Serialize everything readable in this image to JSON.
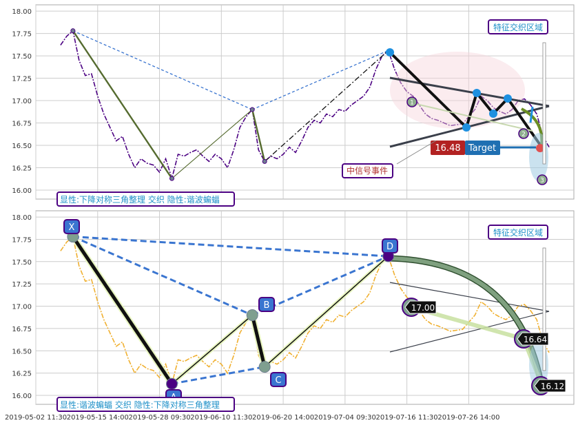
{
  "chart_data": [
    {
      "type": "line",
      "panel": "top",
      "ylim": [
        15.9,
        18.07
      ],
      "yticks": [
        "18.00",
        "17.75",
        "17.50",
        "17.25",
        "17.00",
        "16.75",
        "16.50",
        "16.25",
        "16.00"
      ],
      "series": [
        {
          "color": "#4b0082",
          "style": "dash-dot",
          "x": [
            0,
            1,
            2,
            3,
            4,
            5,
            6,
            7,
            8,
            9,
            10,
            11,
            12,
            13,
            14,
            15,
            16,
            17,
            18,
            19,
            20,
            21,
            22,
            23,
            24,
            25,
            26,
            27,
            28,
            29,
            30,
            31,
            32,
            33,
            34,
            35,
            36,
            37,
            38,
            39,
            40,
            41,
            42,
            43,
            44,
            45,
            46,
            47,
            48,
            49,
            50,
            51,
            52,
            53,
            54,
            55,
            56,
            57,
            58,
            59,
            60,
            61,
            62,
            63,
            64,
            65,
            66,
            67,
            68,
            69,
            70,
            71,
            72,
            73,
            74,
            75,
            76,
            77,
            78,
            79
          ],
          "y": [
            17.62,
            17.72,
            17.78,
            17.45,
            17.28,
            17.3,
            17.05,
            16.85,
            16.7,
            16.55,
            16.6,
            16.4,
            16.25,
            16.35,
            16.3,
            16.28,
            16.2,
            16.35,
            16.13,
            16.4,
            16.38,
            16.42,
            16.45,
            16.38,
            16.32,
            16.4,
            16.35,
            16.25,
            16.45,
            16.7,
            16.82,
            16.9,
            16.45,
            16.32,
            16.38,
            16.35,
            16.4,
            16.48,
            16.42,
            16.55,
            16.7,
            16.78,
            16.75,
            16.85,
            16.82,
            16.9,
            16.88,
            16.95,
            17.0,
            17.05,
            17.15,
            17.35,
            17.5,
            17.56,
            17.35,
            17.2,
            17.1,
            17.05,
            16.95,
            16.85,
            16.8,
            16.78,
            16.75,
            16.72,
            16.73,
            16.74,
            16.82,
            16.9,
            17.05,
            17.0,
            16.92,
            16.88,
            16.85,
            16.9,
            17.0,
            17.02,
            16.95,
            16.85,
            16.6,
            16.48
          ]
        }
      ],
      "pattern_points": [
        {
          "x": 2,
          "y": 17.78
        },
        {
          "x": 18,
          "y": 16.13
        },
        {
          "x": 31,
          "y": 16.9
        },
        {
          "x": 33,
          "y": 16.32
        },
        {
          "x": 53,
          "y": 17.56
        }
      ],
      "triangle_markers": [
        "1",
        "2",
        "3"
      ],
      "target_value": "16.48",
      "target_label": "Target",
      "label_box": "显性:下降对称三角整理 交织 隐性:谐波蝙蝠",
      "zone_label": "特征交织区域",
      "signal_label": "中信号事件"
    },
    {
      "type": "line",
      "panel": "bottom",
      "ylim": [
        15.9,
        18.07
      ],
      "yticks": [
        "18.00",
        "17.75",
        "17.50",
        "17.25",
        "17.00",
        "16.75",
        "16.50",
        "16.25",
        "16.00"
      ],
      "series": [
        {
          "color": "#f0b030",
          "style": "dash-dot",
          "x": [
            0,
            1,
            2,
            3,
            4,
            5,
            6,
            7,
            8,
            9,
            10,
            11,
            12,
            13,
            14,
            15,
            16,
            17,
            18,
            19,
            20,
            21,
            22,
            23,
            24,
            25,
            26,
            27,
            28,
            29,
            30,
            31,
            32,
            33,
            34,
            35,
            36,
            37,
            38,
            39,
            40,
            41,
            42,
            43,
            44,
            45,
            46,
            47,
            48,
            49,
            50,
            51,
            52,
            53,
            54,
            55,
            56,
            57,
            58,
            59,
            60,
            61,
            62,
            63,
            64,
            65,
            66,
            67,
            68,
            69,
            70,
            71,
            72,
            73,
            74,
            75,
            76,
            77,
            78,
            79
          ],
          "y": [
            17.62,
            17.72,
            17.78,
            17.45,
            17.28,
            17.3,
            17.05,
            16.85,
            16.7,
            16.55,
            16.6,
            16.4,
            16.25,
            16.35,
            16.3,
            16.28,
            16.2,
            16.35,
            16.13,
            16.4,
            16.38,
            16.42,
            16.45,
            16.38,
            16.32,
            16.4,
            16.35,
            16.25,
            16.45,
            16.7,
            16.82,
            16.9,
            16.45,
            16.32,
            16.38,
            16.35,
            16.4,
            16.48,
            16.42,
            16.55,
            16.7,
            16.78,
            16.75,
            16.85,
            16.82,
            16.9,
            16.88,
            16.95,
            17.0,
            17.05,
            17.15,
            17.35,
            17.5,
            17.56,
            17.35,
            17.2,
            17.1,
            17.05,
            16.95,
            16.85,
            16.8,
            16.78,
            16.75,
            16.72,
            16.73,
            16.74,
            16.82,
            16.9,
            17.05,
            17.0,
            16.92,
            16.88,
            16.85,
            16.9,
            17.0,
            17.02,
            16.95,
            16.85,
            16.6,
            16.48
          ]
        }
      ],
      "pattern_points": [
        {
          "label": "X",
          "x": 2,
          "y": 17.78
        },
        {
          "label": "A",
          "x": 18,
          "y": 16.13
        },
        {
          "label": "B",
          "x": 31,
          "y": 16.9
        },
        {
          "label": "C",
          "x": 33,
          "y": 16.32
        },
        {
          "label": "D",
          "x": 53,
          "y": 17.56
        }
      ],
      "targets": [
        "17.00",
        "16.64",
        "16.12"
      ],
      "label_box": "显性:谐波蝙蝠 交织 隐性:下降对称三角整理",
      "zone_label": "特征交织区域"
    }
  ],
  "x_axis": {
    "range": [
      -4,
      83
    ],
    "ticks": [
      {
        "x": -4,
        "label": "2019-05-02 11:30"
      },
      {
        "x": 6,
        "label": "2019-05-15 14:00"
      },
      {
        "x": 16,
        "label": "2019-05-28 09:30"
      },
      {
        "x": 26,
        "label": "2019-06-10 11:30"
      },
      {
        "x": 36,
        "label": "2019-06-20 14:00"
      },
      {
        "x": 46,
        "label": "2019-07-04 09:30"
      },
      {
        "x": 56,
        "label": "2019-07-16 11:30"
      },
      {
        "x": 66,
        "label": "2019-07-26 14:00"
      }
    ]
  },
  "colors": {
    "top_line": "#4b0082",
    "bottom_line": "#f0b030",
    "label_text": "#1e90c8",
    "signal_text": "#b03030",
    "target_red": "#b22222",
    "target_blue": "#1f6fb2",
    "pattern_blue": "#3a75d0"
  }
}
